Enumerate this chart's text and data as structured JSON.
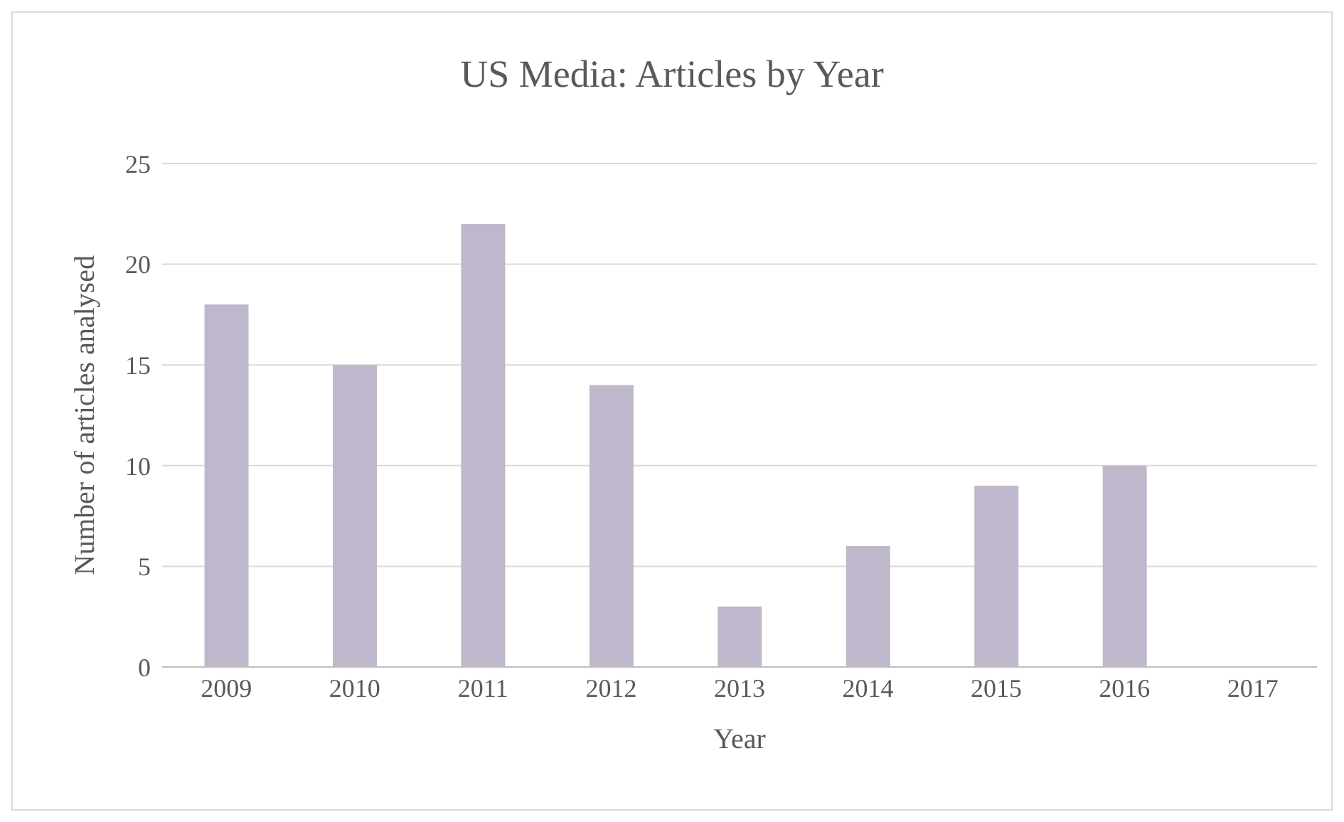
{
  "chart_data": {
    "type": "bar",
    "title": "US Media: Articles by Year",
    "xlabel": "Year",
    "ylabel": "Number of articles analysed",
    "categories": [
      "2009",
      "2010",
      "2011",
      "2012",
      "2013",
      "2014",
      "2015",
      "2016",
      "2017"
    ],
    "values": [
      18,
      15,
      22,
      14,
      3,
      6,
      9,
      10,
      0
    ],
    "color": "#bfb8cc",
    "ylim": [
      0,
      25
    ],
    "yticks": [
      0,
      5,
      10,
      15,
      20,
      25
    ],
    "grid": "y"
  }
}
